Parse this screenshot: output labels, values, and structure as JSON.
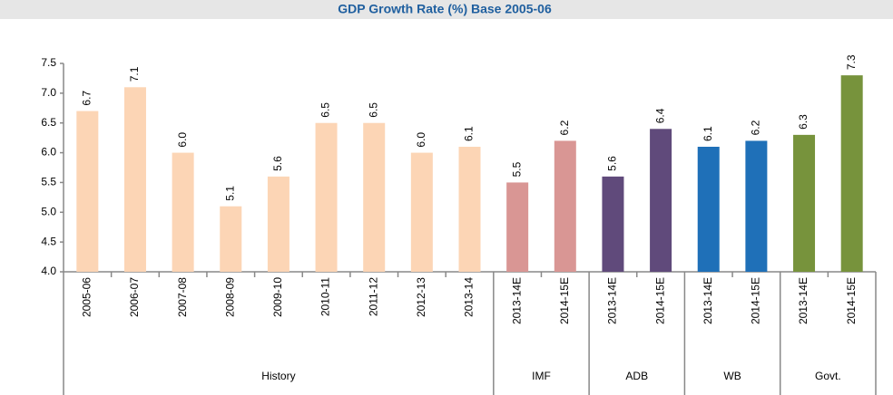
{
  "chart_data": {
    "type": "bar",
    "title": "GDP Growth Rate (%) Base 2005-06",
    "groups": [
      {
        "name": "History",
        "color": "#fcd5b5",
        "categories": [
          "2005-06",
          "2006-07",
          "2007-08",
          "2008-09",
          "2009-10",
          "2010-11",
          "2011-12",
          "2012-13",
          "2013-14"
        ],
        "values": [
          6.7,
          7.1,
          6.0,
          5.1,
          5.6,
          6.5,
          6.5,
          6.0,
          6.1
        ],
        "value_labels": [
          "6.7",
          "7.1",
          "6.0",
          "5.1",
          "5.6",
          "6.5",
          "6.5",
          "6.0",
          "6.1"
        ]
      },
      {
        "name": "IMF",
        "color": "#d99694",
        "categories": [
          "2013-14E",
          "2014-15E"
        ],
        "values": [
          5.5,
          6.2
        ],
        "value_labels": [
          "5.5",
          "6.2"
        ]
      },
      {
        "name": "ADB",
        "color": "#604a7b",
        "categories": [
          "2013-14E",
          "2014-15E"
        ],
        "values": [
          5.6,
          6.4
        ],
        "value_labels": [
          "5.6",
          "6.4"
        ]
      },
      {
        "name": "WB",
        "color": "#1f70b8",
        "categories": [
          "2013-14E",
          "2014-15E"
        ],
        "values": [
          6.1,
          6.2
        ],
        "value_labels": [
          "6.1",
          "6.2"
        ]
      },
      {
        "name": "Govt.",
        "color": "#77933c",
        "categories": [
          "2013-14E",
          "2014-15E"
        ],
        "values": [
          6.3,
          7.3
        ],
        "value_labels": [
          "6.3",
          "7.3"
        ]
      }
    ],
    "ylim": [
      4.0,
      7.5
    ],
    "yticks": [
      {
        "value": 4.0,
        "label": "4.0"
      },
      4.5,
      {
        "value": 5.0,
        "label": "5.0"
      },
      5.5,
      {
        "value": 6.0,
        "label": "6.0"
      },
      6.5,
      {
        "value": 7.0,
        "label": "7.0"
      },
      7.5
    ]
  }
}
